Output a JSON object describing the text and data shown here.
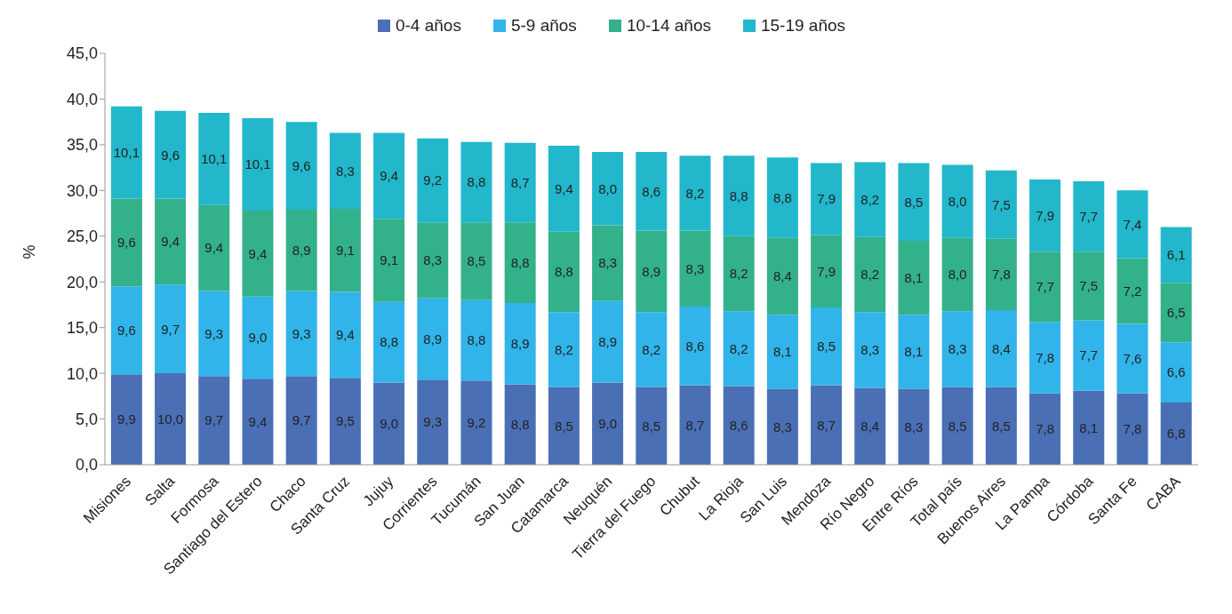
{
  "chart_data": {
    "type": "bar",
    "stacked": true,
    "ylabel": "%",
    "legend": "top",
    "ylim": [
      0,
      45
    ],
    "yticks": [
      {
        "value": 0,
        "label": "0,0"
      },
      {
        "value": 5,
        "label": "5,0"
      },
      {
        "value": 10,
        "label": "10,0"
      },
      {
        "value": 15,
        "label": "15,0"
      },
      {
        "value": 20,
        "label": "20,0"
      },
      {
        "value": 25,
        "label": "25,0"
      },
      {
        "value": 30,
        "label": "30,0"
      },
      {
        "value": 35,
        "label": "35,0"
      },
      {
        "value": 40,
        "label": "40,0"
      },
      {
        "value": 45,
        "label": "45,0"
      }
    ],
    "categories": [
      "Misiones",
      "Salta",
      "Formosa",
      "Santiago del Estero",
      "Chaco",
      "Santa Cruz",
      "Jujuy",
      "Corrientes",
      "Tucumán",
      "San Juan",
      "Catamarca",
      "Neuquén",
      "Tierra del Fuego",
      "Chubut",
      "La Rioja",
      "San Luis",
      "Mendoza",
      "Río Negro",
      "Entre Ríos",
      "Total país",
      "Buenos Aires",
      "La Pampa",
      "Córdoba",
      "Santa Fe",
      "CABA"
    ],
    "series": [
      {
        "name": "0-4 años",
        "color": "#4a6fb5",
        "values": [
          9.9,
          10.0,
          9.7,
          9.4,
          9.7,
          9.5,
          9.0,
          9.3,
          9.2,
          8.8,
          8.5,
          9.0,
          8.5,
          8.7,
          8.6,
          8.3,
          8.7,
          8.4,
          8.3,
          8.5,
          8.5,
          7.8,
          8.1,
          7.8,
          6.8
        ],
        "value_labels": [
          "9,9",
          "10,0",
          "9,7",
          "9,4",
          "9,7",
          "9,5",
          "9,0",
          "9,3",
          "9,2",
          "8,8",
          "8,5",
          "9,0",
          "8,5",
          "8,7",
          "8,6",
          "8,3",
          "8,7",
          "8,4",
          "8,3",
          "8,5",
          "8,5",
          "7,8",
          "8,1",
          "7,8",
          "6,8"
        ]
      },
      {
        "name": "5-9 años",
        "color": "#30b4ea",
        "values": [
          9.6,
          9.7,
          9.3,
          9.0,
          9.3,
          9.4,
          8.8,
          8.9,
          8.8,
          8.9,
          8.2,
          8.9,
          8.2,
          8.6,
          8.2,
          8.1,
          8.5,
          8.3,
          8.1,
          8.3,
          8.4,
          7.8,
          7.7,
          7.6,
          6.6
        ],
        "value_labels": [
          "9,6",
          "9,7",
          "9,3",
          "9,0",
          "9,3",
          "9,4",
          "8,8",
          "8,9",
          "8,8",
          "8,9",
          "8,2",
          "8,9",
          "8,2",
          "8,6",
          "8,2",
          "8,1",
          "8,5",
          "8,3",
          "8,1",
          "8,3",
          "8,4",
          "7,8",
          "7,7",
          "7,6",
          "6,6"
        ]
      },
      {
        "name": "10-14 años",
        "color": "#33b18b",
        "values": [
          9.6,
          9.4,
          9.4,
          9.4,
          8.9,
          9.1,
          9.1,
          8.3,
          8.5,
          8.8,
          8.8,
          8.3,
          8.9,
          8.3,
          8.2,
          8.4,
          7.9,
          8.2,
          8.1,
          8.0,
          7.8,
          7.7,
          7.5,
          7.2,
          6.5
        ],
        "value_labels": [
          "9,6",
          "9,4",
          "9,4",
          "9,4",
          "8,9",
          "9,1",
          "9,1",
          "8,3",
          "8,5",
          "8,8",
          "8,8",
          "8,3",
          "8,9",
          "8,3",
          "8,2",
          "8,4",
          "7,9",
          "8,2",
          "8,1",
          "8,0",
          "7,8",
          "7,7",
          "7,5",
          "7,2",
          "6,5"
        ]
      },
      {
        "name": "15-19 años",
        "color": "#22b7cb",
        "values": [
          10.1,
          9.6,
          10.1,
          10.1,
          9.6,
          8.3,
          9.4,
          9.2,
          8.8,
          8.7,
          9.4,
          8.0,
          8.6,
          8.2,
          8.8,
          8.8,
          7.9,
          8.2,
          8.5,
          8.0,
          7.5,
          7.9,
          7.7,
          7.4,
          6.1
        ],
        "value_labels": [
          "10,1",
          "9,6",
          "10,1",
          "10,1",
          "9,6",
          "8,3",
          "9,4",
          "9,2",
          "8,8",
          "8,7",
          "9,4",
          "8,0",
          "8,6",
          "8,2",
          "8,8",
          "8,8",
          "7,9",
          "8,2",
          "8,5",
          "8,0",
          "7,5",
          "7,9",
          "7,7",
          "7,4",
          "6,1"
        ]
      }
    ]
  }
}
